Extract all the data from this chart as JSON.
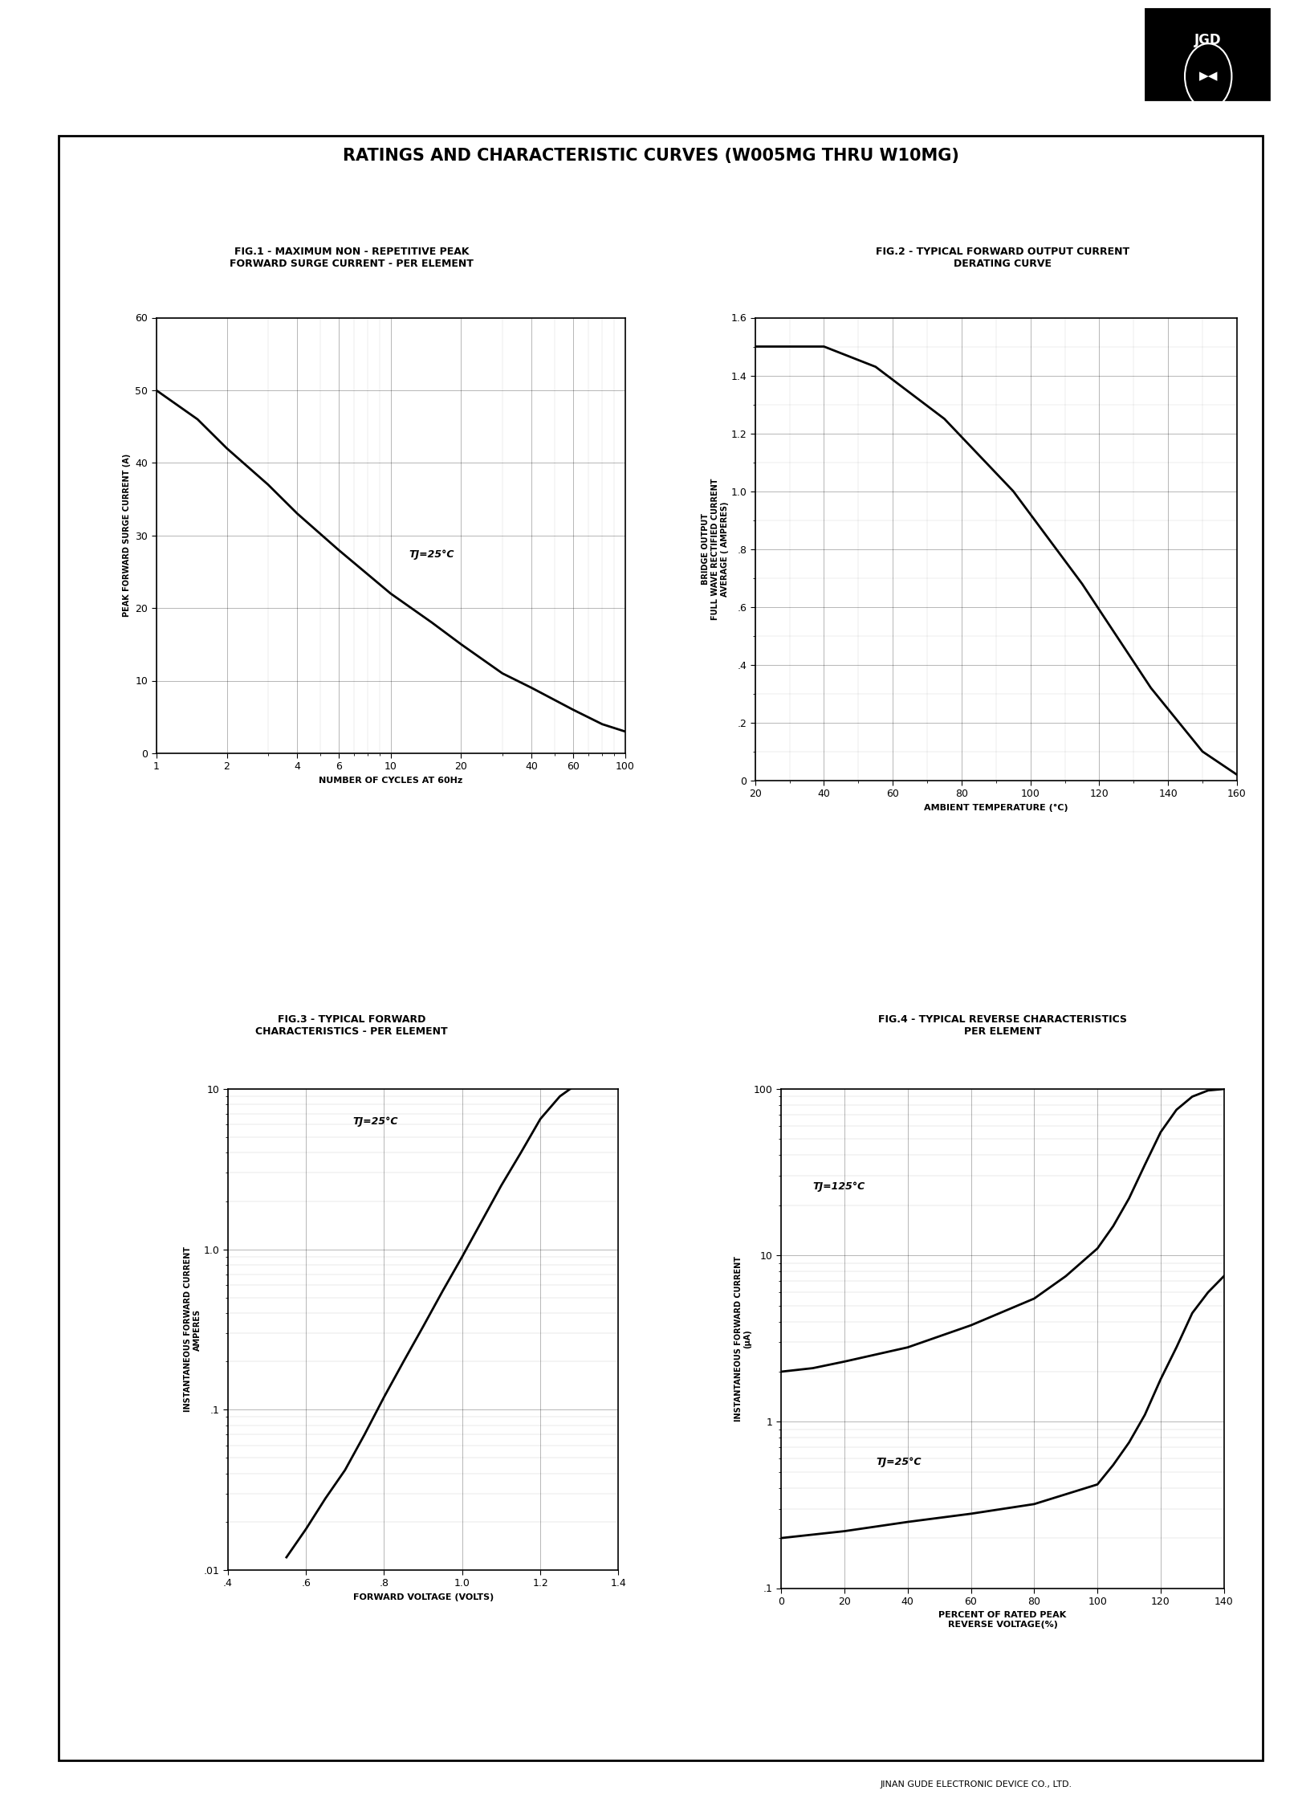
{
  "page_title": "RATINGS AND CHARACTERISTIC CURVES (W005MG THRU W10MG)",
  "fig1_title_line1": "FIG.1 - MAXIMUM NON - REPETITIVE PEAK",
  "fig1_title_line2": "FORWARD SURGE CURRENT - PER ELEMENT",
  "fig2_title_line1": "FIG.2 - TYPICAL FORWARD OUTPUT CURRENT",
  "fig2_title_line2": "DERATING CURVE",
  "fig3_title_line1": "FIG.3 - TYPICAL FORWARD",
  "fig3_title_line2": "CHARACTERISTICS - PER ELEMENT",
  "fig4_title_line1": "FIG.4 - TYPICAL REVERSE CHARACTERISTICS",
  "fig4_title_line2": "PER ELEMENT",
  "company": "JINAN GUDE ELECTRONIC DEVICE CO., LTD.",
  "fig1": {
    "xlabel": "NUMBER OF CYCLES AT 60Hz",
    "ylabel": "PEAK FORWARD SURGE CURRENT (A)",
    "xlim": [
      1,
      100
    ],
    "ylim": [
      0,
      60
    ],
    "xticks": [
      1,
      2,
      4,
      6,
      10,
      20,
      40,
      60,
      100
    ],
    "xticklabels": [
      "1",
      "2",
      "4",
      "6",
      "10",
      "20",
      "40",
      "60",
      "100"
    ],
    "yticks": [
      0,
      10,
      20,
      30,
      40,
      50,
      60
    ],
    "annotation": "TJ=25°C",
    "ann_x": 12,
    "ann_y": 27,
    "curve_x": [
      1,
      1.5,
      2,
      3,
      4,
      6,
      10,
      15,
      20,
      30,
      40,
      60,
      80,
      100
    ],
    "curve_y": [
      50,
      46,
      42,
      37,
      33,
      28,
      22,
      18,
      15,
      11,
      9,
      6,
      4,
      3
    ]
  },
  "fig2": {
    "xlabel": "AMBIENT TEMPERATURE (°C)",
    "ylabel_line1": "BRIDGE OUTPUT",
    "ylabel_line2": "FULL WAVE RECTIFIED CURRENT",
    "ylabel_line3": "AVERAGE ( AMPERES)",
    "xlim": [
      20,
      160
    ],
    "ylim": [
      0,
      1.6
    ],
    "xticks": [
      20,
      40,
      60,
      80,
      100,
      120,
      140,
      160
    ],
    "yticks": [
      0,
      0.2,
      0.4,
      0.6,
      0.8,
      1.0,
      1.2,
      1.4,
      1.6
    ],
    "yticklabels": [
      "0",
      ".2",
      ".4",
      ".6",
      ".8",
      "1.0",
      "1.2",
      "1.4",
      "1.6"
    ],
    "curve_x": [
      20,
      40,
      55,
      75,
      95,
      115,
      135,
      150,
      160
    ],
    "curve_y": [
      1.5,
      1.5,
      1.43,
      1.25,
      1.0,
      0.68,
      0.32,
      0.1,
      0.02
    ]
  },
  "fig3": {
    "xlabel": "FORWARD VOLTAGE (VOLTS)",
    "ylabel_line1": "INSTANTANEOUS FORWARD CURRENT",
    "ylabel_line2": "AMPERES",
    "xlim": [
      0.4,
      1.4
    ],
    "ylim_log": [
      -2,
      1
    ],
    "xticks": [
      0.4,
      0.6,
      0.8,
      1.0,
      1.2,
      1.4
    ],
    "xticklabels": [
      ".4",
      ".6",
      ".8",
      "1.0",
      "1.2",
      "1.4"
    ],
    "yticks": [
      0.01,
      0.1,
      1.0,
      10
    ],
    "yticklabels": [
      ".01",
      ".1",
      "1.0",
      "10"
    ],
    "annotation": "TJ=25°C",
    "ann_x": 0.72,
    "ann_y": 6.0,
    "curve_x": [
      0.55,
      0.6,
      0.65,
      0.7,
      0.75,
      0.8,
      0.85,
      0.9,
      0.95,
      1.0,
      1.05,
      1.1,
      1.15,
      1.2,
      1.25,
      1.3,
      1.35,
      1.4
    ],
    "curve_y": [
      0.012,
      0.018,
      0.028,
      0.042,
      0.07,
      0.12,
      0.2,
      0.33,
      0.55,
      0.9,
      1.5,
      2.5,
      4.0,
      6.5,
      9.0,
      11.0,
      13.0,
      15.0
    ]
  },
  "fig4": {
    "xlabel_line1": "PERCENT OF RATED PEAK",
    "xlabel_line2": "REVERSE VOLTAGE(%)",
    "ylabel_line1": "INSTANTANEOUS FORWARD CURRENT",
    "ylabel_line2": "(μA)",
    "xlim": [
      0,
      140
    ],
    "ylim": [
      0.1,
      100
    ],
    "xticks": [
      0,
      20,
      40,
      60,
      80,
      100,
      120,
      140
    ],
    "yticks": [
      0.1,
      1,
      10,
      100
    ],
    "yticklabels": [
      ".1",
      "1",
      "10",
      "100"
    ],
    "ann_125": "TJ=125°C",
    "ann_25": "TJ=25°C",
    "ann_125_x": 10,
    "ann_125_y": 25,
    "ann_25_x": 30,
    "ann_25_y": 0.55,
    "curve_x_125": [
      0,
      10,
      20,
      40,
      60,
      80,
      90,
      100,
      105,
      110,
      115,
      120,
      125,
      130,
      135,
      140
    ],
    "curve_y_125": [
      2.0,
      2.1,
      2.3,
      2.8,
      3.8,
      5.5,
      7.5,
      11.0,
      15.0,
      22.0,
      35.0,
      55.0,
      75.0,
      90.0,
      98.0,
      100.0
    ],
    "curve_x_25": [
      0,
      20,
      40,
      60,
      80,
      100,
      105,
      110,
      115,
      120,
      125,
      130,
      135,
      140
    ],
    "curve_y_25": [
      0.2,
      0.22,
      0.25,
      0.28,
      0.32,
      0.42,
      0.55,
      0.75,
      1.1,
      1.8,
      2.8,
      4.5,
      6.0,
      7.5
    ]
  },
  "background_color": "#ffffff",
  "line_color": "#000000",
  "grid_color": "#000000",
  "grid_alpha": 0.4,
  "grid_lw": 0.5,
  "curve_lw": 2.0
}
